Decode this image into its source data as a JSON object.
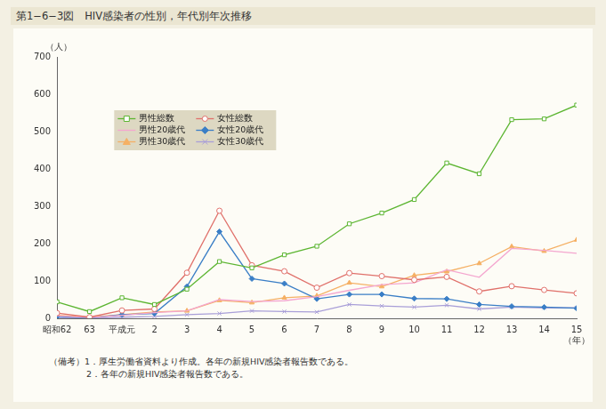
{
  "chart_data": {
    "type": "line",
    "title": "第1−6−3図　HIV感染者の性別，年代別年次推移",
    "y_label": "（人）",
    "x_label": "（年）",
    "annotations": [
      "（備考）1．厚生労働省資料より作成。各年の新規HIV感染者報告数である。",
      "2．各年の新規HIV感染者報告数である。"
    ],
    "categories": [
      "昭和62",
      "63",
      "平成元",
      "2",
      "3",
      "4",
      "5",
      "6",
      "7",
      "8",
      "9",
      "10",
      "11",
      "12",
      "13",
      "14",
      "15"
    ],
    "series": [
      {
        "name": "男性総数",
        "color": "#5cb531",
        "marker": "square",
        "values": [
          44,
          18,
          55,
          37,
          78,
          152,
          135,
          170,
          193,
          253,
          282,
          318,
          416,
          387,
          532,
          534,
          571
        ]
      },
      {
        "name": "女性総数",
        "color": "#e0706a",
        "marker": "circle",
        "values": [
          14,
          3,
          21,
          25,
          122,
          288,
          142,
          126,
          82,
          121,
          113,
          103,
          111,
          72,
          86,
          76,
          67
        ]
      },
      {
        "name": "男性20歳代",
        "color": "#f4a6cf",
        "marker": "none",
        "values": [
          7,
          2,
          8,
          15,
          20,
          50,
          45,
          47,
          58,
          75,
          90,
          95,
          130,
          110,
          187,
          182,
          174
        ]
      },
      {
        "name": "女性20歳代",
        "color": "#3a7ec6",
        "marker": "diamond",
        "values": [
          5,
          1,
          10,
          13,
          85,
          232,
          106,
          93,
          52,
          64,
          64,
          53,
          52,
          37,
          32,
          30,
          27
        ]
      },
      {
        "name": "男性30歳代",
        "color": "#f5b064",
        "marker": "triangle",
        "values": [
          8,
          3,
          10,
          17,
          20,
          48,
          42,
          55,
          60,
          95,
          85,
          115,
          125,
          147,
          192,
          180,
          210
        ]
      },
      {
        "name": "女性30歳代",
        "color": "#a99fd8",
        "marker": "cross",
        "values": [
          2,
          0,
          3,
          5,
          10,
          13,
          20,
          18,
          17,
          37,
          33,
          30,
          35,
          25,
          30,
          28,
          28
        ]
      }
    ],
    "ylim": [
      0,
      700
    ],
    "yticks": [
      0,
      100,
      200,
      300,
      400,
      500,
      600,
      700
    ],
    "grid": false,
    "legend": "upper left"
  }
}
